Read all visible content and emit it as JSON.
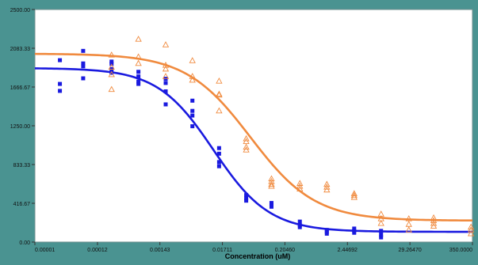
{
  "chart_data": {
    "type": "scatter",
    "title": "",
    "xlabel": "Concentration (uM)",
    "ylabel": "",
    "x_scale": "log",
    "x_ticks": [
      "0.00001",
      "0.00012",
      "0.00143",
      "0.01711",
      "0.20460",
      "2.44692",
      "29.26470",
      "350.0000"
    ],
    "x_tick_values": [
      1e-05,
      0.00012,
      0.00143,
      0.01711,
      0.2046,
      2.44692,
      29.2647,
      350.0
    ],
    "y_ticks": [
      "0.00",
      "416.67",
      "833.33",
      "1250.00",
      "1666.67",
      "2083.33",
      "2500.00"
    ],
    "y_tick_values": [
      0,
      416.67,
      833.33,
      1250.0,
      1666.67,
      2083.33,
      2500.0
    ],
    "ylim": [
      0,
      2500
    ],
    "xlim": [
      1e-05,
      350.0
    ],
    "grid": false,
    "legend": "none",
    "series": [
      {
        "marker": "square",
        "color": "#1a1adf",
        "points": [
          [
            2.7e-05,
            1955
          ],
          [
            2.7e-05,
            1700
          ],
          [
            2.7e-05,
            1625
          ],
          [
            6.8e-05,
            2055
          ],
          [
            6.8e-05,
            1920
          ],
          [
            6.8e-05,
            1890
          ],
          [
            6.8e-05,
            1760
          ],
          [
            0.00021,
            1940
          ],
          [
            0.00021,
            1915
          ],
          [
            0.00021,
            1860
          ],
          [
            0.00021,
            1820
          ],
          [
            0.00061,
            1830
          ],
          [
            0.00061,
            1780
          ],
          [
            0.00061,
            1725
          ],
          [
            0.00061,
            1700
          ],
          [
            0.0018,
            1755
          ],
          [
            0.0018,
            1710
          ],
          [
            0.0018,
            1620
          ],
          [
            0.0018,
            1480
          ],
          [
            0.0052,
            1520
          ],
          [
            0.0052,
            1410
          ],
          [
            0.0052,
            1360
          ],
          [
            0.0052,
            1245
          ],
          [
            0.015,
            1010
          ],
          [
            0.015,
            950
          ],
          [
            0.015,
            860
          ],
          [
            0.015,
            815
          ],
          [
            0.044,
            505
          ],
          [
            0.044,
            470
          ],
          [
            0.044,
            445
          ],
          [
            0.12,
            420
          ],
          [
            0.12,
            400
          ],
          [
            0.12,
            380
          ],
          [
            0.37,
            220
          ],
          [
            0.37,
            180
          ],
          [
            0.37,
            160
          ],
          [
            1.08,
            130
          ],
          [
            1.08,
            110
          ],
          [
            1.08,
            90
          ],
          [
            3.2,
            145
          ],
          [
            3.2,
            120
          ],
          [
            3.2,
            100
          ],
          [
            9.3,
            120
          ],
          [
            9.3,
            80
          ],
          [
            9.3,
            50
          ]
        ],
        "fit": {
          "bottom": 110,
          "top": 1870,
          "ec50": 0.012,
          "hill": 0.9
        }
      },
      {
        "marker": "triangle",
        "color": "#f08a3e",
        "points": [
          [
            0.00021,
            2010
          ],
          [
            0.00021,
            1880
          ],
          [
            0.00021,
            1800
          ],
          [
            0.00021,
            1640
          ],
          [
            0.00061,
            2180
          ],
          [
            0.00061,
            1990
          ],
          [
            0.00061,
            1920
          ],
          [
            0.0018,
            2120
          ],
          [
            0.0018,
            1900
          ],
          [
            0.0018,
            1860
          ],
          [
            0.0018,
            1780
          ],
          [
            0.0052,
            1950
          ],
          [
            0.0052,
            1780
          ],
          [
            0.0052,
            1740
          ],
          [
            0.015,
            1730
          ],
          [
            0.015,
            1590
          ],
          [
            0.015,
            1580
          ],
          [
            0.015,
            1410
          ],
          [
            0.044,
            1110
          ],
          [
            0.044,
            1080
          ],
          [
            0.044,
            1020
          ],
          [
            0.044,
            990
          ],
          [
            0.12,
            680
          ],
          [
            0.12,
            650
          ],
          [
            0.12,
            620
          ],
          [
            0.12,
            600
          ],
          [
            0.37,
            630
          ],
          [
            0.37,
            600
          ],
          [
            0.37,
            570
          ],
          [
            1.08,
            620
          ],
          [
            1.08,
            590
          ],
          [
            1.08,
            560
          ],
          [
            3.2,
            520
          ],
          [
            3.2,
            500
          ],
          [
            3.2,
            480
          ],
          [
            9.3,
            300
          ],
          [
            9.3,
            250
          ],
          [
            9.3,
            200
          ],
          [
            28,
            250
          ],
          [
            28,
            190
          ],
          [
            28,
            130
          ],
          [
            75,
            260
          ],
          [
            75,
            230
          ],
          [
            75,
            200
          ],
          [
            75,
            170
          ],
          [
            330,
            160
          ],
          [
            330,
            130
          ],
          [
            330,
            90
          ]
        ],
        "fit": {
          "bottom": 230,
          "top": 2025,
          "ec50": 0.052,
          "hill": 0.78
        }
      }
    ]
  }
}
